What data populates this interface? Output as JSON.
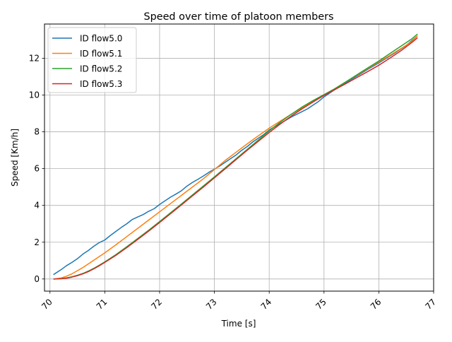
{
  "chart_data": {
    "type": "line",
    "title": "Speed over time of platoon members",
    "xlabel": "Time [s]",
    "ylabel": "Speed [Km/h]",
    "xlim": [
      69.9,
      77.0
    ],
    "ylim": [
      -0.66,
      13.86
    ],
    "xticks": [
      70,
      71,
      72,
      73,
      74,
      75,
      76,
      77
    ],
    "yticks": [
      0,
      2,
      4,
      6,
      8,
      10,
      12
    ],
    "xtick_rotation_deg": 45,
    "grid": true,
    "legend_position": "top-left",
    "series": [
      {
        "name": "ID flow5.0",
        "color": "#1f77b4",
        "points": [
          [
            70.07,
            0.25
          ],
          [
            70.2,
            0.5
          ],
          [
            70.3,
            0.72
          ],
          [
            70.4,
            0.9
          ],
          [
            70.5,
            1.1
          ],
          [
            70.6,
            1.35
          ],
          [
            70.7,
            1.55
          ],
          [
            70.8,
            1.78
          ],
          [
            70.9,
            1.98
          ],
          [
            71.0,
            2.12
          ],
          [
            71.1,
            2.36
          ],
          [
            71.2,
            2.58
          ],
          [
            71.3,
            2.8
          ],
          [
            71.4,
            3.0
          ],
          [
            71.5,
            3.23
          ],
          [
            71.6,
            3.37
          ],
          [
            71.7,
            3.5
          ],
          [
            71.8,
            3.68
          ],
          [
            71.9,
            3.82
          ],
          [
            72.0,
            4.05
          ],
          [
            72.1,
            4.25
          ],
          [
            72.2,
            4.45
          ],
          [
            72.3,
            4.62
          ],
          [
            72.4,
            4.8
          ],
          [
            72.5,
            5.05
          ],
          [
            72.6,
            5.25
          ],
          [
            72.7,
            5.42
          ],
          [
            72.8,
            5.6
          ],
          [
            72.9,
            5.8
          ],
          [
            73.0,
            5.97
          ],
          [
            73.1,
            6.15
          ],
          [
            73.2,
            6.35
          ],
          [
            73.3,
            6.55
          ],
          [
            73.4,
            6.75
          ],
          [
            73.5,
            7.0
          ],
          [
            73.6,
            7.2
          ],
          [
            73.7,
            7.45
          ],
          [
            73.8,
            7.65
          ],
          [
            73.9,
            7.85
          ],
          [
            74.0,
            8.1
          ],
          [
            74.2,
            8.45
          ],
          [
            74.4,
            8.8
          ],
          [
            74.6,
            9.1
          ],
          [
            74.7,
            9.25
          ],
          [
            74.8,
            9.45
          ],
          [
            74.9,
            9.65
          ],
          [
            75.0,
            9.9
          ],
          [
            75.2,
            10.3
          ],
          [
            75.5,
            10.85
          ],
          [
            75.8,
            11.4
          ],
          [
            76.0,
            11.75
          ],
          [
            76.3,
            12.3
          ],
          [
            76.5,
            12.7
          ],
          [
            76.7,
            13.2
          ]
        ]
      },
      {
        "name": "ID flow5.1",
        "color": "#ff7f0e",
        "points": [
          [
            70.07,
            0.0
          ],
          [
            70.2,
            0.05
          ],
          [
            70.3,
            0.15
          ],
          [
            70.4,
            0.28
          ],
          [
            70.5,
            0.45
          ],
          [
            70.6,
            0.62
          ],
          [
            70.7,
            0.82
          ],
          [
            70.8,
            1.02
          ],
          [
            70.9,
            1.22
          ],
          [
            71.0,
            1.42
          ],
          [
            71.2,
            1.85
          ],
          [
            71.4,
            2.3
          ],
          [
            71.6,
            2.75
          ],
          [
            71.8,
            3.2
          ],
          [
            72.0,
            3.65
          ],
          [
            72.2,
            4.1
          ],
          [
            72.4,
            4.55
          ],
          [
            72.6,
            5.0
          ],
          [
            72.8,
            5.45
          ],
          [
            73.0,
            5.95
          ],
          [
            73.2,
            6.45
          ],
          [
            73.4,
            6.9
          ],
          [
            73.6,
            7.35
          ],
          [
            73.8,
            7.78
          ],
          [
            74.0,
            8.2
          ],
          [
            74.2,
            8.58
          ],
          [
            74.4,
            8.95
          ],
          [
            74.6,
            9.3
          ],
          [
            74.8,
            9.65
          ],
          [
            75.0,
            10.0
          ],
          [
            75.2,
            10.35
          ],
          [
            75.4,
            10.72
          ],
          [
            75.6,
            11.08
          ],
          [
            75.8,
            11.45
          ],
          [
            76.0,
            11.8
          ],
          [
            76.2,
            12.15
          ],
          [
            76.4,
            12.52
          ],
          [
            76.6,
            12.9
          ],
          [
            76.7,
            13.2
          ]
        ]
      },
      {
        "name": "ID flow5.2",
        "color": "#2ca02c",
        "points": [
          [
            70.07,
            0.0
          ],
          [
            70.2,
            0.02
          ],
          [
            70.3,
            0.06
          ],
          [
            70.4,
            0.12
          ],
          [
            70.5,
            0.2
          ],
          [
            70.6,
            0.3
          ],
          [
            70.7,
            0.43
          ],
          [
            70.8,
            0.58
          ],
          [
            70.9,
            0.75
          ],
          [
            71.0,
            0.93
          ],
          [
            71.2,
            1.32
          ],
          [
            71.4,
            1.75
          ],
          [
            71.6,
            2.2
          ],
          [
            71.8,
            2.65
          ],
          [
            72.0,
            3.12
          ],
          [
            72.2,
            3.6
          ],
          [
            72.4,
            4.08
          ],
          [
            72.6,
            4.57
          ],
          [
            72.8,
            5.06
          ],
          [
            73.0,
            5.55
          ],
          [
            73.2,
            6.05
          ],
          [
            73.4,
            6.55
          ],
          [
            73.6,
            7.05
          ],
          [
            73.8,
            7.55
          ],
          [
            74.0,
            8.05
          ],
          [
            74.2,
            8.52
          ],
          [
            74.4,
            8.95
          ],
          [
            74.6,
            9.35
          ],
          [
            74.8,
            9.7
          ],
          [
            75.0,
            10.02
          ],
          [
            75.2,
            10.35
          ],
          [
            75.4,
            10.72
          ],
          [
            75.6,
            11.1
          ],
          [
            75.8,
            11.48
          ],
          [
            76.0,
            11.85
          ],
          [
            76.2,
            12.25
          ],
          [
            76.4,
            12.65
          ],
          [
            76.6,
            13.05
          ],
          [
            76.7,
            13.3
          ]
        ]
      },
      {
        "name": "ID flow5.3",
        "color": "#d62728",
        "points": [
          [
            70.07,
            0.0
          ],
          [
            70.2,
            0.01
          ],
          [
            70.3,
            0.04
          ],
          [
            70.4,
            0.1
          ],
          [
            70.5,
            0.18
          ],
          [
            70.6,
            0.28
          ],
          [
            70.7,
            0.4
          ],
          [
            70.8,
            0.55
          ],
          [
            70.9,
            0.72
          ],
          [
            71.0,
            0.9
          ],
          [
            71.2,
            1.28
          ],
          [
            71.4,
            1.7
          ],
          [
            71.6,
            2.15
          ],
          [
            71.8,
            2.6
          ],
          [
            72.0,
            3.07
          ],
          [
            72.2,
            3.55
          ],
          [
            72.4,
            4.03
          ],
          [
            72.6,
            4.52
          ],
          [
            72.8,
            5.0
          ],
          [
            73.0,
            5.5
          ],
          [
            73.2,
            6.0
          ],
          [
            73.4,
            6.5
          ],
          [
            73.6,
            7.0
          ],
          [
            73.8,
            7.48
          ],
          [
            74.0,
            7.96
          ],
          [
            74.2,
            8.42
          ],
          [
            74.4,
            8.85
          ],
          [
            74.6,
            9.25
          ],
          [
            74.8,
            9.62
          ],
          [
            75.0,
            9.98
          ],
          [
            75.2,
            10.3
          ],
          [
            75.4,
            10.62
          ],
          [
            75.6,
            10.95
          ],
          [
            75.8,
            11.28
          ],
          [
            76.0,
            11.62
          ],
          [
            76.2,
            12.0
          ],
          [
            76.4,
            12.4
          ],
          [
            76.6,
            12.85
          ],
          [
            76.7,
            13.1
          ]
        ]
      }
    ]
  }
}
